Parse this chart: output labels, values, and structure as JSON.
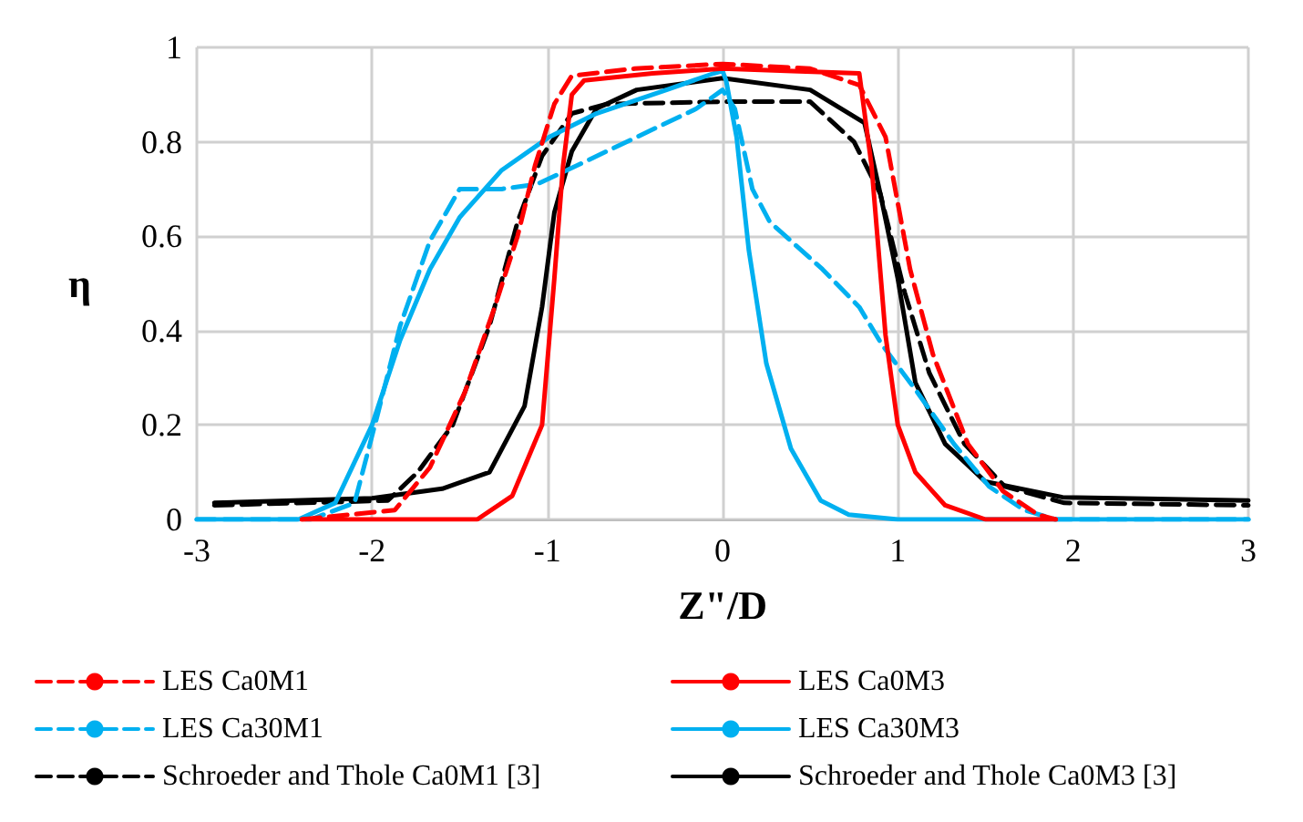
{
  "chart_data": {
    "type": "line",
    "xlabel": "Z\"/D",
    "ylabel": "η",
    "xlim": [
      -3,
      3
    ],
    "xticks": [
      -3,
      -2,
      -1,
      0,
      1,
      2,
      3
    ],
    "ylim": [
      0,
      1
    ],
    "yticks": [
      0,
      0.2,
      0.4,
      0.6,
      0.8,
      1
    ],
    "grid": true,
    "legend": "bottom",
    "marker": "none",
    "series": [
      {
        "name": "LES Ca0M1",
        "color": "#ff0000",
        "line_style": "dashed",
        "x": [
          -2.4,
          -1.87,
          -1.67,
          -1.47,
          -1.3,
          -1.17,
          -1.07,
          -0.96,
          -0.86,
          -0.5,
          0,
          0.5,
          0.78,
          0.93,
          1.07,
          1.2,
          1.4,
          1.6,
          1.8,
          1.9
        ],
        "values": [
          0,
          0.02,
          0.11,
          0.27,
          0.45,
          0.6,
          0.75,
          0.88,
          0.94,
          0.955,
          0.965,
          0.955,
          0.92,
          0.81,
          0.53,
          0.35,
          0.16,
          0.06,
          0.01,
          0
        ]
      },
      {
        "name": "LES Ca0M3",
        "color": "#ff0000",
        "line_style": "solid",
        "x": [
          -2.4,
          -1.4,
          -1.2,
          -1.03,
          -0.96,
          -0.91,
          -0.86,
          -0.79,
          -0.4,
          0,
          0.4,
          0.78,
          0.85,
          0.93,
          1,
          1.1,
          1.27,
          1.5,
          1.9
        ],
        "values": [
          0,
          0,
          0.05,
          0.2,
          0.51,
          0.75,
          0.9,
          0.93,
          0.945,
          0.955,
          0.95,
          0.945,
          0.75,
          0.39,
          0.2,
          0.1,
          0.03,
          0,
          0
        ]
      },
      {
        "name": "LES Ca30M1",
        "color": "#00b0f0",
        "line_style": "dashed",
        "x": [
          -3,
          -2.35,
          -2.1,
          -1.97,
          -1.84,
          -1.67,
          -1.5,
          -1.26,
          -1.06,
          -0.83,
          -0.49,
          -0.15,
          0,
          0.07,
          0.17,
          0.27,
          0.57,
          0.78,
          0.91,
          1.11,
          1.32,
          1.52,
          1.72,
          1.9,
          3
        ],
        "values": [
          0,
          0,
          0.035,
          0.22,
          0.41,
          0.59,
          0.7,
          0.7,
          0.71,
          0.75,
          0.81,
          0.87,
          0.91,
          0.87,
          0.7,
          0.63,
          0.53,
          0.45,
          0.37,
          0.27,
          0.16,
          0.07,
          0.02,
          0,
          0
        ]
      },
      {
        "name": "LES Ca30M3",
        "color": "#00b0f0",
        "line_style": "solid",
        "x": [
          -3,
          -2.42,
          -2.21,
          -2,
          -1.84,
          -1.67,
          -1.5,
          -1.26,
          -0.99,
          -0.72,
          -0.32,
          -0.05,
          0,
          0.02,
          0.08,
          0.15,
          0.25,
          0.39,
          0.56,
          0.72,
          1,
          3
        ],
        "values": [
          0,
          0,
          0.035,
          0.2,
          0.38,
          0.53,
          0.64,
          0.74,
          0.81,
          0.86,
          0.91,
          0.945,
          0.95,
          0.93,
          0.81,
          0.57,
          0.33,
          0.15,
          0.04,
          0.01,
          0,
          0
        ]
      },
      {
        "name": "Schroeder and Thole Ca0M1 [3]",
        "color": "#000000",
        "line_style": "dashed",
        "x": [
          -2.9,
          -1.91,
          -1.74,
          -1.54,
          -1.33,
          -1.17,
          -1.03,
          -0.86,
          -0.66,
          0,
          0.5,
          0.75,
          0.9,
          1.04,
          1.18,
          1.38,
          1.61,
          1.95,
          3
        ],
        "values": [
          0.03,
          0.04,
          0.1,
          0.2,
          0.41,
          0.63,
          0.77,
          0.86,
          0.88,
          0.885,
          0.885,
          0.8,
          0.69,
          0.48,
          0.31,
          0.16,
          0.07,
          0.035,
          0.03
        ]
      },
      {
        "name": "Schroeder and Thole Ca0M3 [3]",
        "color": "#000000",
        "line_style": "solid",
        "x": [
          -2.9,
          -2,
          -1.6,
          -1.33,
          -1.13,
          -1.03,
          -0.96,
          -0.86,
          -0.72,
          -0.49,
          0,
          0.5,
          0.81,
          0.9,
          1,
          1.1,
          1.27,
          1.5,
          1.94,
          3
        ],
        "values": [
          0.035,
          0.045,
          0.065,
          0.1,
          0.24,
          0.45,
          0.65,
          0.78,
          0.87,
          0.91,
          0.935,
          0.91,
          0.84,
          0.69,
          0.51,
          0.29,
          0.16,
          0.08,
          0.047,
          0.04
        ]
      }
    ]
  }
}
